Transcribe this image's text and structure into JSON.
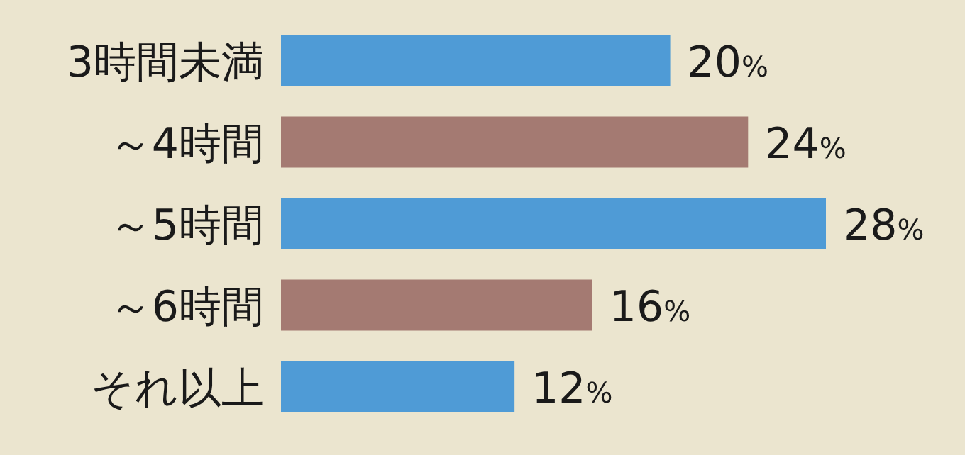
{
  "chart_data": {
    "type": "bar",
    "orientation": "horizontal",
    "categories": [
      "3時間未満",
      "～4時間",
      "～5時間",
      "～6時間",
      "それ以上"
    ],
    "values": [
      20,
      24,
      28,
      16,
      12
    ],
    "colors": [
      "#4f9bd6",
      "#a47a72",
      "#4f9bd6",
      "#a47a72",
      "#4f9bd6"
    ],
    "value_labels": [
      "20%",
      "24%",
      "28%",
      "16%",
      "12%"
    ]
  }
}
